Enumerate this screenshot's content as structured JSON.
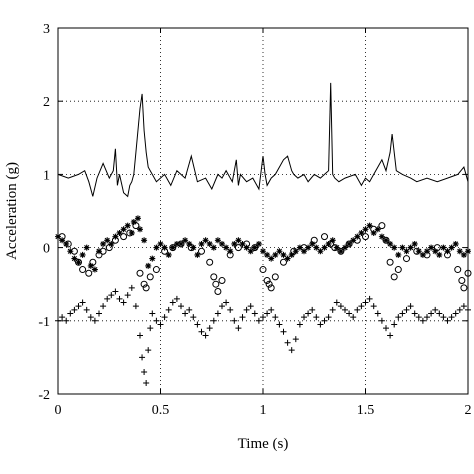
{
  "chart_data": {
    "type": "scatter",
    "title": "",
    "xlabel": "Time (s)",
    "ylabel": "Acceleration (g)",
    "xlim": [
      0,
      2
    ],
    "ylim": [
      -2,
      3
    ],
    "xticks": [
      "0",
      "0.5",
      "1",
      "1.5",
      "2"
    ],
    "yticks": [
      "-2",
      "-1",
      "0",
      "1",
      "2",
      "3"
    ],
    "grid": "dotted",
    "legend": "none",
    "series": [
      {
        "marker": "line",
        "color": "#000000",
        "x": [
          0.0,
          0.05,
          0.1,
          0.13,
          0.15,
          0.17,
          0.19,
          0.22,
          0.25,
          0.27,
          0.28,
          0.29,
          0.3,
          0.32,
          0.34,
          0.35,
          0.36,
          0.37,
          0.38,
          0.4,
          0.41,
          0.42,
          0.43,
          0.44,
          0.46,
          0.48,
          0.52,
          0.55,
          0.58,
          0.62,
          0.65,
          0.68,
          0.72,
          0.75,
          0.78,
          0.8,
          0.82,
          0.85,
          0.87,
          0.88,
          0.89,
          0.92,
          0.95,
          0.98,
          1.0,
          1.01,
          1.02,
          1.04,
          1.06,
          1.08,
          1.1,
          1.12,
          1.14,
          1.15,
          1.17,
          1.2,
          1.22,
          1.25,
          1.28,
          1.3,
          1.32,
          1.33,
          1.34,
          1.35,
          1.37,
          1.4,
          1.45,
          1.48,
          1.5,
          1.52,
          1.54,
          1.56,
          1.58,
          1.6,
          1.62,
          1.63,
          1.65,
          1.68,
          1.72,
          1.75,
          1.8,
          1.85,
          1.9,
          1.95,
          1.98,
          2.0
        ],
        "y": [
          1.0,
          0.95,
          1.0,
          1.05,
          0.9,
          0.7,
          0.95,
          1.15,
          0.95,
          1.05,
          1.35,
          0.85,
          1.0,
          0.75,
          0.7,
          0.85,
          0.9,
          1.0,
          1.3,
          1.9,
          2.1,
          1.6,
          1.3,
          1.1,
          1.0,
          0.9,
          1.0,
          0.85,
          1.05,
          0.95,
          1.25,
          0.9,
          0.95,
          0.8,
          1.0,
          0.95,
          1.05,
          0.9,
          1.2,
          0.85,
          1.0,
          0.9,
          0.95,
          0.8,
          1.25,
          1.0,
          0.85,
          0.95,
          1.0,
          1.1,
          1.2,
          1.25,
          1.05,
          1.0,
          0.95,
          1.0,
          0.9,
          1.0,
          0.95,
          1.0,
          1.05,
          2.25,
          1.0,
          0.95,
          0.9,
          0.95,
          1.0,
          0.85,
          0.95,
          0.9,
          1.0,
          1.1,
          1.2,
          1.05,
          1.3,
          1.55,
          1.05,
          1.0,
          0.95,
          0.9,
          0.95,
          0.9,
          0.95,
          1.0,
          1.1,
          0.9
        ]
      },
      {
        "marker": "star",
        "color": "#000000",
        "x": [
          0.0,
          0.02,
          0.04,
          0.06,
          0.08,
          0.1,
          0.12,
          0.14,
          0.16,
          0.18,
          0.2,
          0.22,
          0.24,
          0.26,
          0.28,
          0.3,
          0.32,
          0.34,
          0.36,
          0.37,
          0.39,
          0.4,
          0.42,
          0.44,
          0.46,
          0.48,
          0.5,
          0.52,
          0.54,
          0.56,
          0.58,
          0.6,
          0.62,
          0.64,
          0.66,
          0.68,
          0.7,
          0.72,
          0.74,
          0.76,
          0.78,
          0.8,
          0.82,
          0.84,
          0.86,
          0.88,
          0.9,
          0.92,
          0.94,
          0.96,
          0.98,
          1.0,
          1.02,
          1.04,
          1.06,
          1.08,
          1.1,
          1.12,
          1.14,
          1.16,
          1.18,
          1.2,
          1.22,
          1.24,
          1.26,
          1.28,
          1.3,
          1.32,
          1.34,
          1.36,
          1.38,
          1.4,
          1.42,
          1.44,
          1.46,
          1.48,
          1.5,
          1.52,
          1.54,
          1.56,
          1.58,
          1.6,
          1.62,
          1.64,
          1.66,
          1.68,
          1.7,
          1.72,
          1.74,
          1.76,
          1.78,
          1.8,
          1.82,
          1.84,
          1.86,
          1.88,
          1.9,
          1.92,
          1.94,
          1.96,
          1.98,
          2.0
        ],
        "y": [
          0.15,
          0.1,
          0.05,
          -0.05,
          -0.15,
          -0.2,
          -0.1,
          0.0,
          -0.25,
          -0.3,
          -0.05,
          0.05,
          0.1,
          0.05,
          0.15,
          0.2,
          0.25,
          0.3,
          0.2,
          0.35,
          0.4,
          0.25,
          0.1,
          -0.25,
          -0.15,
          0.0,
          0.05,
          0.0,
          -0.1,
          0.0,
          0.05,
          0.05,
          0.1,
          0.05,
          0.0,
          -0.1,
          0.05,
          0.1,
          0.05,
          0.0,
          0.1,
          0.05,
          0.0,
          -0.05,
          0.05,
          0.1,
          0.05,
          0.0,
          -0.05,
          0.0,
          0.05,
          -0.05,
          -0.1,
          -0.15,
          -0.1,
          -0.05,
          -0.1,
          -0.15,
          -0.1,
          -0.05,
          0.0,
          -0.05,
          0.0,
          0.05,
          0.0,
          -0.05,
          0.0,
          0.05,
          0.1,
          0.0,
          -0.05,
          0.0,
          0.05,
          0.1,
          0.15,
          0.2,
          0.25,
          0.3,
          0.2,
          0.25,
          0.15,
          0.1,
          0.05,
          0.0,
          -0.1,
          0.0,
          -0.05,
          0.0,
          0.05,
          -0.05,
          -0.1,
          -0.05,
          0.0,
          -0.05,
          -0.1,
          0.0,
          -0.05,
          0.0,
          0.05,
          -0.05,
          -0.1,
          -0.05
        ]
      },
      {
        "marker": "circle",
        "color": "#000000",
        "x": [
          0.02,
          0.05,
          0.08,
          0.1,
          0.12,
          0.15,
          0.17,
          0.2,
          0.22,
          0.25,
          0.28,
          0.32,
          0.35,
          0.38,
          0.4,
          0.42,
          0.43,
          0.45,
          0.48,
          0.52,
          0.56,
          0.6,
          0.65,
          0.7,
          0.74,
          0.76,
          0.77,
          0.78,
          0.8,
          0.84,
          0.88,
          0.92,
          0.96,
          1.0,
          1.02,
          1.03,
          1.04,
          1.06,
          1.1,
          1.15,
          1.2,
          1.25,
          1.3,
          1.33,
          1.35,
          1.38,
          1.42,
          1.46,
          1.5,
          1.54,
          1.58,
          1.6,
          1.62,
          1.64,
          1.66,
          1.7,
          1.75,
          1.8,
          1.85,
          1.9,
          1.95,
          1.97,
          1.98,
          2.0
        ],
        "y": [
          0.15,
          0.05,
          -0.05,
          -0.2,
          -0.3,
          -0.35,
          -0.2,
          -0.1,
          -0.05,
          0.0,
          0.1,
          0.15,
          0.2,
          0.3,
          -0.35,
          -0.5,
          -0.55,
          -0.4,
          -0.3,
          -0.05,
          0.0,
          0.05,
          0.0,
          -0.05,
          -0.2,
          -0.4,
          -0.5,
          -0.6,
          -0.45,
          -0.1,
          0.0,
          0.05,
          0.0,
          -0.3,
          -0.45,
          -0.5,
          -0.55,
          -0.4,
          -0.2,
          -0.05,
          0.0,
          0.1,
          0.15,
          0.05,
          0.0,
          -0.05,
          0.05,
          0.1,
          0.15,
          0.25,
          0.3,
          0.1,
          -0.2,
          -0.4,
          -0.3,
          -0.15,
          -0.05,
          -0.1,
          0.0,
          -0.1,
          -0.3,
          -0.45,
          -0.55,
          -0.35
        ]
      },
      {
        "marker": "plus",
        "color": "#000000",
        "x": [
          0.0,
          0.02,
          0.04,
          0.06,
          0.08,
          0.1,
          0.12,
          0.14,
          0.16,
          0.18,
          0.2,
          0.22,
          0.24,
          0.26,
          0.28,
          0.3,
          0.32,
          0.34,
          0.36,
          0.38,
          0.4,
          0.41,
          0.42,
          0.43,
          0.44,
          0.45,
          0.46,
          0.48,
          0.5,
          0.52,
          0.54,
          0.56,
          0.58,
          0.6,
          0.62,
          0.64,
          0.66,
          0.68,
          0.7,
          0.72,
          0.74,
          0.76,
          0.78,
          0.8,
          0.82,
          0.84,
          0.86,
          0.88,
          0.9,
          0.92,
          0.94,
          0.96,
          0.98,
          1.0,
          1.02,
          1.04,
          1.06,
          1.08,
          1.1,
          1.12,
          1.14,
          1.16,
          1.18,
          1.2,
          1.22,
          1.24,
          1.26,
          1.28,
          1.3,
          1.32,
          1.34,
          1.36,
          1.38,
          1.4,
          1.42,
          1.44,
          1.46,
          1.48,
          1.5,
          1.52,
          1.54,
          1.56,
          1.58,
          1.6,
          1.62,
          1.64,
          1.66,
          1.68,
          1.7,
          1.72,
          1.74,
          1.76,
          1.78,
          1.8,
          1.82,
          1.84,
          1.86,
          1.88,
          1.9,
          1.92,
          1.94,
          1.96,
          1.98,
          2.0
        ],
        "y": [
          -1.0,
          -0.95,
          -1.0,
          -0.9,
          -0.85,
          -0.8,
          -0.75,
          -0.85,
          -0.95,
          -1.0,
          -0.9,
          -0.8,
          -0.7,
          -0.65,
          -0.6,
          -0.7,
          -0.75,
          -0.65,
          -0.55,
          -0.8,
          -1.2,
          -1.5,
          -1.7,
          -1.85,
          -1.4,
          -1.1,
          -0.9,
          -1.0,
          -1.05,
          -0.95,
          -0.85,
          -0.75,
          -0.7,
          -0.8,
          -0.9,
          -0.85,
          -0.95,
          -1.05,
          -1.15,
          -1.2,
          -1.1,
          -1.0,
          -0.9,
          -0.8,
          -0.75,
          -0.85,
          -1.0,
          -1.1,
          -0.95,
          -0.85,
          -0.8,
          -0.9,
          -1.0,
          -0.95,
          -0.9,
          -0.85,
          -0.95,
          -1.05,
          -1.15,
          -1.3,
          -1.4,
          -1.25,
          -1.05,
          -0.95,
          -0.9,
          -0.85,
          -0.95,
          -1.05,
          -1.0,
          -0.95,
          -0.85,
          -0.75,
          -0.8,
          -0.85,
          -0.9,
          -0.95,
          -0.85,
          -0.8,
          -0.75,
          -0.7,
          -0.8,
          -0.9,
          -1.0,
          -1.1,
          -1.2,
          -1.05,
          -0.95,
          -0.9,
          -0.85,
          -0.8,
          -0.9,
          -0.95,
          -1.0,
          -0.95,
          -0.9,
          -0.85,
          -0.9,
          -0.95,
          -1.0,
          -0.95,
          -0.9,
          -0.85,
          -0.8,
          -0.85
        ]
      }
    ]
  }
}
